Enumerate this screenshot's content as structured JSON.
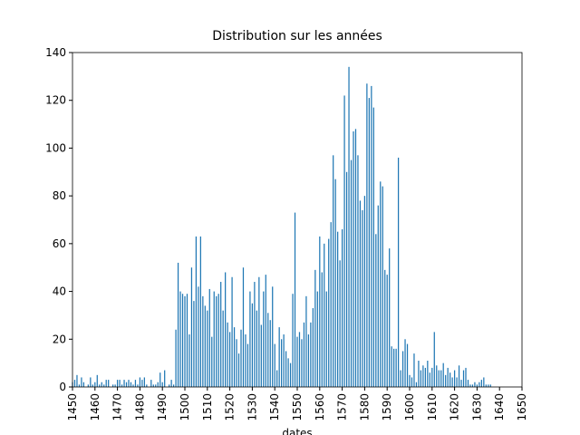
{
  "chart_data": {
    "type": "bar",
    "title": "Distribution sur les années",
    "xlabel": "dates",
    "color": "#1f77b4",
    "x": [
      1450,
      1451,
      1452,
      1453,
      1454,
      1455,
      1456,
      1457,
      1458,
      1459,
      1460,
      1461,
      1462,
      1463,
      1464,
      1465,
      1466,
      1467,
      1468,
      1469,
      1470,
      1471,
      1472,
      1473,
      1474,
      1475,
      1476,
      1477,
      1478,
      1479,
      1480,
      1481,
      1482,
      1483,
      1484,
      1485,
      1486,
      1487,
      1488,
      1489,
      1490,
      1491,
      1492,
      1493,
      1494,
      1495,
      1496,
      1497,
      1498,
      1499,
      1500,
      1501,
      1502,
      1503,
      1504,
      1505,
      1506,
      1507,
      1508,
      1509,
      1510,
      1511,
      1512,
      1513,
      1514,
      1515,
      1516,
      1517,
      1518,
      1519,
      1520,
      1521,
      1522,
      1523,
      1524,
      1525,
      1526,
      1527,
      1528,
      1529,
      1530,
      1531,
      1532,
      1533,
      1534,
      1535,
      1536,
      1537,
      1538,
      1539,
      1540,
      1541,
      1542,
      1543,
      1544,
      1545,
      1546,
      1547,
      1548,
      1549,
      1550,
      1551,
      1552,
      1553,
      1554,
      1555,
      1556,
      1557,
      1558,
      1559,
      1560,
      1561,
      1562,
      1563,
      1564,
      1565,
      1566,
      1567,
      1568,
      1569,
      1570,
      1571,
      1572,
      1573,
      1574,
      1575,
      1576,
      1577,
      1578,
      1579,
      1580,
      1581,
      1582,
      1583,
      1584,
      1585,
      1586,
      1587,
      1588,
      1589,
      1590,
      1591,
      1592,
      1593,
      1594,
      1595,
      1596,
      1597,
      1598,
      1599,
      1600,
      1601,
      1602,
      1603,
      1604,
      1605,
      1606,
      1607,
      1608,
      1609,
      1610,
      1611,
      1612,
      1613,
      1614,
      1615,
      1616,
      1617,
      1618,
      1619,
      1620,
      1621,
      1622,
      1623,
      1624,
      1625,
      1626,
      1627,
      1628,
      1629,
      1630,
      1631,
      1632,
      1633,
      1634,
      1635,
      1636,
      1637
    ],
    "values": [
      2,
      3,
      5,
      1,
      4,
      2,
      0,
      1,
      4,
      1,
      2,
      5,
      1,
      2,
      1,
      3,
      3,
      0,
      1,
      1,
      3,
      3,
      1,
      3,
      2,
      3,
      2,
      1,
      3,
      1,
      4,
      3,
      4,
      1,
      0,
      3,
      1,
      1,
      2,
      6,
      2,
      7,
      0,
      1,
      3,
      1,
      24,
      52,
      40,
      39,
      38,
      39,
      22,
      50,
      36,
      63,
      42,
      63,
      38,
      34,
      32,
      41,
      21,
      40,
      38,
      39,
      44,
      32,
      48,
      27,
      23,
      46,
      25,
      20,
      14,
      24,
      50,
      22,
      18,
      40,
      35,
      44,
      32,
      46,
      26,
      40,
      47,
      31,
      28,
      42,
      18,
      7,
      25,
      20,
      22,
      15,
      12,
      10,
      39,
      73,
      21,
      23,
      20,
      27,
      38,
      22,
      27,
      33,
      49,
      40,
      63,
      48,
      60,
      40,
      62,
      69,
      97,
      87,
      65,
      53,
      66,
      122,
      90,
      134,
      95,
      107,
      108,
      97,
      78,
      74,
      80,
      127,
      121,
      126,
      117,
      64,
      76,
      86,
      84,
      49,
      47,
      58,
      17,
      16,
      16,
      96,
      7,
      15,
      20,
      18,
      5,
      4,
      14,
      2,
      11,
      7,
      9,
      8,
      11,
      6,
      8,
      23,
      9,
      7,
      7,
      10,
      5,
      8,
      6,
      4,
      7,
      4,
      9,
      3,
      7,
      8,
      3,
      1,
      1,
      2,
      1,
      2,
      3,
      4,
      1,
      1,
      1,
      0
    ],
    "xlim": [
      1450,
      1650
    ],
    "xticks": [
      1450,
      1460,
      1470,
      1480,
      1490,
      1500,
      1510,
      1520,
      1530,
      1540,
      1550,
      1560,
      1570,
      1580,
      1590,
      1600,
      1610,
      1620,
      1630,
      1640,
      1650
    ],
    "ylim": [
      0,
      140
    ],
    "yticks": [
      0,
      20,
      40,
      60,
      80,
      100,
      120,
      140
    ]
  }
}
